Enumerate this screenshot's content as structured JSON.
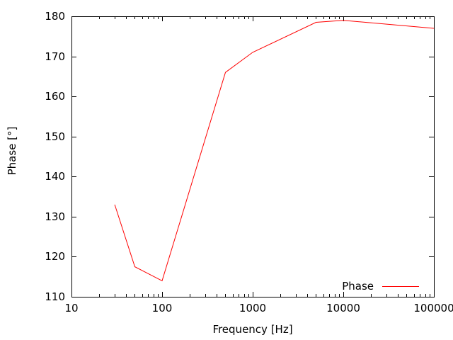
{
  "colors": {
    "line": "#ff0000",
    "axis": "#000000",
    "text": "#000000",
    "background": "#ffffff"
  },
  "legend": {
    "label": "Phase",
    "position": "bottom-right",
    "has_border": false
  },
  "chart_data": {
    "type": "line",
    "title": "",
    "xlabel": "Frequency [Hz]",
    "ylabel": "Phase [°]",
    "x_scale": "log",
    "xlim": [
      10,
      100000
    ],
    "ylim": [
      110,
      180
    ],
    "x_ticks": [
      10,
      100,
      1000,
      10000,
      100000
    ],
    "x_tick_labels": [
      "10",
      "100",
      "1000",
      "10000",
      "100000"
    ],
    "x_minor_ticks": "log-decade-2-to-9",
    "y_ticks": [
      110,
      120,
      130,
      140,
      150,
      160,
      170,
      180
    ],
    "y_tick_labels": [
      "110",
      "120",
      "130",
      "140",
      "150",
      "160",
      "170",
      "180"
    ],
    "grid": false,
    "legend_position": "bottom-right",
    "series": [
      {
        "name": "Phase",
        "color": "#ff0000",
        "x": [
          30,
          50,
          100,
          500,
          1000,
          5000,
          10000,
          100000
        ],
        "y": [
          133,
          117.5,
          114,
          166,
          171,
          178.5,
          179,
          177
        ]
      }
    ]
  }
}
